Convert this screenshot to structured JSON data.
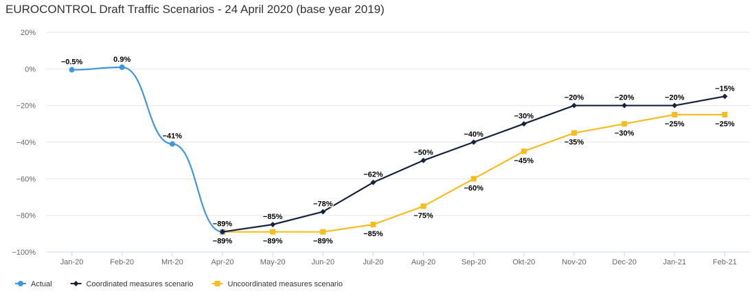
{
  "title": "EUROCONTROL Draft Traffic Scenarios - 24 April 2020 (base year 2019)",
  "chart_data": {
    "type": "line",
    "title": "EUROCONTROL Draft Traffic Scenarios - 24 April 2020 (base year 2019)",
    "categories": [
      "Jan-20",
      "Feb-20",
      "Mrt-20",
      "Apr-20",
      "May-20",
      "Jun-20",
      "Jul-20",
      "Aug-20",
      "Sep-20",
      "Okt-20",
      "Nov-20",
      "Dec-20",
      "Jan-21",
      "Feb-21"
    ],
    "ylim": [
      -100,
      20
    ],
    "yticks": [
      20,
      0,
      -20,
      -40,
      -60,
      -80,
      -100
    ],
    "ytick_labels": [
      "20%",
      "0%",
      "−20%",
      "−40%",
      "−60%",
      "−80%",
      "−100%"
    ],
    "grid": true,
    "legend_position": "bottom-left",
    "series": [
      {
        "name": "Actual",
        "color": "#3c96e0",
        "marker": "circle",
        "values": [
          -0.5,
          0.9,
          -41,
          -89,
          null,
          null,
          null,
          null,
          null,
          null,
          null,
          null,
          null,
          null
        ],
        "labels": [
          "−0.5%",
          "0.9%",
          "−41%",
          "−89%",
          null,
          null,
          null,
          null,
          null,
          null,
          null,
          null,
          null,
          null
        ]
      },
      {
        "name": "Coordinated measures scenario",
        "color": "#16223e",
        "marker": "diamond",
        "values": [
          null,
          null,
          null,
          -89,
          -85,
          -78,
          -62,
          -50,
          -40,
          -30,
          -20,
          -20,
          -20,
          -15
        ],
        "labels": [
          null,
          null,
          null,
          null,
          "−85%",
          "−78%",
          "−62%",
          "−50%",
          "−40%",
          "−30%",
          "−20%",
          "−20%",
          "−20%",
          "−15%"
        ]
      },
      {
        "name": "Uncoordinated measures scenario",
        "color": "#f5bd1f",
        "marker": "square",
        "values": [
          null,
          null,
          null,
          -89,
          -89,
          -89,
          -85,
          -75,
          -60,
          -45,
          -35,
          -30,
          -25,
          -25
        ],
        "labels": [
          null,
          null,
          null,
          "−89%",
          "−89%",
          "−89%",
          "−85%",
          "−75%",
          "−60%",
          "−45%",
          "−35%",
          "−30%",
          "−25%",
          "−25%"
        ]
      }
    ]
  }
}
